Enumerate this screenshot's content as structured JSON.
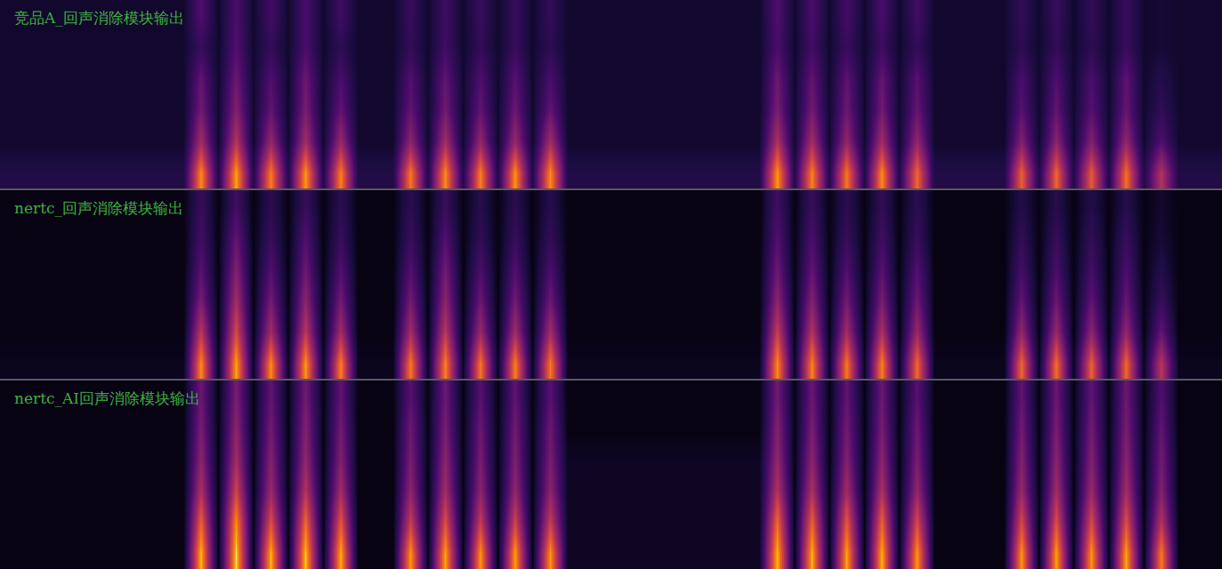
{
  "chart_data": [
    {
      "type": "heatmap",
      "title": "竞品A_回声消除模块输出",
      "zlim": [
        0,
        100
      ],
      "tick_labels": false,
      "z": [
        [
          14,
          14,
          14,
          14,
          14,
          14,
          14,
          14,
          14,
          14,
          14,
          88,
          14,
          92,
          14,
          85,
          14,
          90,
          14,
          86,
          14,
          14,
          14,
          84,
          14,
          88,
          14,
          86,
          14,
          90,
          14,
          88,
          14,
          14,
          14,
          14,
          14,
          14,
          14,
          14,
          14,
          14,
          14,
          14,
          90,
          14,
          86,
          14,
          84,
          14,
          88,
          14,
          80,
          14,
          14,
          14,
          14,
          14,
          78,
          14,
          80,
          14,
          76,
          14,
          82,
          14,
          60,
          14,
          14,
          14
        ],
        [
          8,
          8,
          8,
          8,
          8,
          8,
          8,
          8,
          8,
          8,
          8,
          55,
          8,
          60,
          8,
          50,
          8,
          55,
          8,
          52,
          8,
          8,
          8,
          48,
          8,
          55,
          8,
          50,
          8,
          52,
          8,
          55,
          8,
          8,
          8,
          8,
          8,
          8,
          8,
          8,
          8,
          8,
          8,
          8,
          58,
          8,
          55,
          8,
          50,
          8,
          55,
          8,
          50,
          8,
          8,
          8,
          8,
          8,
          45,
          8,
          48,
          8,
          45,
          8,
          50,
          8,
          30,
          8,
          8,
          8
        ],
        [
          8,
          8,
          8,
          8,
          8,
          8,
          8,
          8,
          8,
          8,
          8,
          40,
          8,
          45,
          8,
          35,
          8,
          42,
          8,
          35,
          8,
          8,
          8,
          35,
          8,
          40,
          8,
          35,
          8,
          38,
          8,
          35,
          8,
          8,
          8,
          8,
          8,
          8,
          8,
          8,
          8,
          8,
          8,
          8,
          42,
          8,
          40,
          8,
          38,
          8,
          40,
          8,
          36,
          8,
          8,
          8,
          8,
          8,
          32,
          8,
          35,
          8,
          32,
          8,
          36,
          8,
          20,
          8,
          8,
          8
        ],
        [
          8,
          8,
          8,
          8,
          8,
          8,
          8,
          8,
          8,
          8,
          8,
          35,
          8,
          38,
          8,
          30,
          8,
          38,
          8,
          28,
          8,
          8,
          8,
          30,
          8,
          35,
          8,
          30,
          8,
          32,
          8,
          28,
          8,
          8,
          8,
          8,
          8,
          8,
          8,
          8,
          8,
          8,
          8,
          8,
          38,
          8,
          35,
          8,
          34,
          8,
          36,
          8,
          32,
          8,
          8,
          8,
          8,
          8,
          28,
          8,
          30,
          8,
          28,
          8,
          34,
          8,
          15,
          8,
          8,
          8
        ],
        [
          8,
          8,
          8,
          8,
          8,
          8,
          8,
          8,
          8,
          8,
          8,
          22,
          8,
          30,
          8,
          20,
          8,
          28,
          8,
          18,
          8,
          8,
          8,
          20,
          8,
          25,
          8,
          20,
          8,
          22,
          8,
          18,
          8,
          8,
          8,
          8,
          8,
          8,
          8,
          8,
          8,
          8,
          8,
          8,
          28,
          8,
          25,
          8,
          22,
          8,
          24,
          8,
          20,
          8,
          8,
          8,
          8,
          8,
          18,
          8,
          20,
          8,
          18,
          8,
          22,
          8,
          10,
          8,
          8,
          8
        ],
        [
          8,
          8,
          8,
          8,
          8,
          8,
          8,
          8,
          8,
          8,
          8,
          30,
          8,
          28,
          8,
          25,
          8,
          28,
          8,
          25,
          8,
          8,
          8,
          22,
          8,
          24,
          8,
          22,
          8,
          22,
          8,
          20,
          8,
          8,
          8,
          8,
          8,
          8,
          8,
          8,
          8,
          8,
          8,
          8,
          30,
          8,
          28,
          8,
          26,
          8,
          28,
          8,
          25,
          8,
          8,
          8,
          8,
          8,
          20,
          8,
          22,
          8,
          20,
          8,
          22,
          8,
          10,
          8,
          8,
          8
        ]
      ]
    },
    {
      "type": "heatmap",
      "title": "nertc_回声消除模块输出",
      "zlim": [
        0,
        100
      ],
      "tick_labels": false,
      "z": [
        [
          5,
          5,
          5,
          5,
          5,
          5,
          5,
          5,
          5,
          5,
          5,
          88,
          5,
          92,
          5,
          88,
          5,
          90,
          5,
          86,
          5,
          5,
          5,
          84,
          5,
          86,
          5,
          84,
          5,
          86,
          5,
          84,
          5,
          5,
          5,
          5,
          5,
          5,
          5,
          5,
          5,
          5,
          5,
          5,
          88,
          5,
          86,
          5,
          84,
          5,
          86,
          5,
          80,
          5,
          5,
          5,
          5,
          5,
          80,
          5,
          82,
          5,
          78,
          5,
          80,
          5,
          62,
          5,
          5,
          5
        ],
        [
          3,
          3,
          3,
          3,
          3,
          3,
          3,
          3,
          3,
          3,
          3,
          62,
          3,
          70,
          3,
          55,
          3,
          62,
          3,
          55,
          3,
          3,
          3,
          55,
          3,
          62,
          3,
          52,
          3,
          55,
          3,
          55,
          3,
          3,
          3,
          3,
          3,
          3,
          3,
          3,
          3,
          3,
          3,
          3,
          65,
          3,
          60,
          3,
          55,
          3,
          58,
          3,
          52,
          3,
          3,
          3,
          3,
          3,
          50,
          3,
          52,
          3,
          48,
          3,
          50,
          3,
          35,
          3,
          3,
          3
        ],
        [
          3,
          3,
          3,
          3,
          3,
          3,
          3,
          3,
          3,
          3,
          3,
          42,
          3,
          55,
          3,
          40,
          3,
          48,
          3,
          40,
          3,
          3,
          3,
          40,
          3,
          48,
          3,
          38,
          3,
          40,
          3,
          38,
          3,
          3,
          3,
          3,
          3,
          3,
          3,
          3,
          3,
          3,
          3,
          3,
          48,
          3,
          45,
          3,
          40,
          3,
          42,
          3,
          38,
          3,
          3,
          3,
          3,
          3,
          35,
          3,
          38,
          3,
          34,
          3,
          36,
          3,
          22,
          3,
          3,
          3
        ],
        [
          3,
          3,
          3,
          3,
          3,
          3,
          3,
          3,
          3,
          3,
          3,
          32,
          3,
          45,
          3,
          30,
          3,
          38,
          3,
          30,
          3,
          3,
          3,
          30,
          3,
          40,
          3,
          28,
          3,
          30,
          3,
          28,
          3,
          3,
          3,
          3,
          3,
          3,
          3,
          3,
          3,
          3,
          3,
          3,
          38,
          3,
          35,
          3,
          30,
          3,
          32,
          3,
          30,
          3,
          3,
          3,
          3,
          3,
          26,
          3,
          28,
          3,
          26,
          3,
          28,
          3,
          15,
          3,
          3,
          3
        ],
        [
          3,
          3,
          3,
          3,
          3,
          3,
          3,
          3,
          3,
          3,
          3,
          25,
          3,
          35,
          3,
          22,
          3,
          30,
          3,
          22,
          3,
          3,
          3,
          22,
          3,
          30,
          3,
          20,
          3,
          22,
          3,
          20,
          3,
          3,
          3,
          3,
          3,
          3,
          3,
          3,
          3,
          3,
          3,
          3,
          30,
          3,
          28,
          3,
          22,
          3,
          25,
          3,
          22,
          3,
          3,
          3,
          3,
          3,
          20,
          3,
          22,
          3,
          20,
          3,
          22,
          3,
          10,
          3,
          3,
          3
        ],
        [
          3,
          3,
          3,
          3,
          3,
          3,
          3,
          3,
          3,
          3,
          3,
          22,
          3,
          25,
          3,
          18,
          3,
          22,
          3,
          18,
          3,
          3,
          3,
          18,
          3,
          22,
          3,
          16,
          3,
          18,
          3,
          16,
          3,
          3,
          3,
          3,
          3,
          3,
          3,
          3,
          3,
          3,
          3,
          3,
          25,
          3,
          22,
          3,
          18,
          3,
          20,
          3,
          18,
          3,
          3,
          3,
          3,
          3,
          15,
          3,
          16,
          3,
          15,
          3,
          16,
          3,
          8,
          3,
          3,
          3
        ]
      ]
    },
    {
      "type": "heatmap",
      "title": "nertc_AI回声消除模块输出",
      "zlim": [
        0,
        100
      ],
      "tick_labels": false,
      "z": [
        [
          3,
          3,
          3,
          3,
          3,
          3,
          3,
          3,
          3,
          3,
          3,
          95,
          3,
          98,
          3,
          94,
          3,
          96,
          3,
          94,
          3,
          3,
          3,
          90,
          3,
          92,
          3,
          90,
          3,
          92,
          3,
          90,
          6,
          6,
          6,
          6,
          6,
          6,
          6,
          6,
          6,
          6,
          6,
          6,
          95,
          3,
          94,
          3,
          92,
          3,
          94,
          3,
          90,
          3,
          3,
          3,
          3,
          3,
          90,
          3,
          92,
          3,
          90,
          3,
          92,
          3,
          85,
          3,
          3,
          3
        ],
        [
          3,
          3,
          3,
          3,
          3,
          3,
          3,
          3,
          3,
          3,
          3,
          78,
          3,
          88,
          3,
          72,
          3,
          80,
          3,
          75,
          3,
          3,
          3,
          65,
          3,
          72,
          3,
          65,
          3,
          68,
          3,
          65,
          6,
          6,
          6,
          6,
          6,
          6,
          6,
          6,
          6,
          6,
          6,
          6,
          80,
          3,
          78,
          3,
          75,
          3,
          78,
          3,
          70,
          3,
          3,
          3,
          3,
          3,
          70,
          3,
          72,
          3,
          70,
          3,
          72,
          3,
          60,
          3,
          3,
          3
        ],
        [
          3,
          3,
          3,
          3,
          3,
          3,
          3,
          3,
          3,
          3,
          3,
          58,
          3,
          68,
          3,
          52,
          3,
          60,
          3,
          55,
          3,
          3,
          3,
          48,
          3,
          55,
          3,
          48,
          3,
          50,
          3,
          48,
          6,
          6,
          6,
          6,
          6,
          6,
          6,
          6,
          6,
          6,
          6,
          6,
          60,
          3,
          58,
          3,
          55,
          3,
          58,
          3,
          50,
          3,
          3,
          3,
          3,
          3,
          52,
          3,
          55,
          3,
          52,
          3,
          55,
          3,
          45,
          3,
          3,
          3
        ],
        [
          3,
          3,
          3,
          3,
          3,
          3,
          3,
          3,
          3,
          3,
          3,
          48,
          3,
          55,
          3,
          45,
          3,
          50,
          3,
          45,
          3,
          3,
          3,
          42,
          3,
          48,
          3,
          42,
          3,
          44,
          3,
          42,
          6,
          6,
          6,
          6,
          6,
          6,
          6,
          6,
          6,
          6,
          6,
          6,
          50,
          3,
          48,
          3,
          45,
          3,
          48,
          3,
          42,
          3,
          3,
          3,
          3,
          3,
          45,
          3,
          48,
          3,
          45,
          3,
          48,
          3,
          40,
          3,
          3,
          3
        ],
        [
          3,
          3,
          3,
          3,
          3,
          3,
          3,
          3,
          3,
          3,
          3,
          42,
          3,
          48,
          3,
          40,
          3,
          45,
          3,
          40,
          3,
          3,
          3,
          38,
          3,
          42,
          3,
          38,
          3,
          40,
          3,
          38,
          3,
          3,
          3,
          3,
          3,
          3,
          3,
          3,
          3,
          3,
          3,
          3,
          45,
          3,
          42,
          3,
          40,
          3,
          42,
          3,
          38,
          3,
          3,
          3,
          3,
          3,
          40,
          3,
          42,
          3,
          40,
          3,
          42,
          3,
          35,
          3,
          3,
          3
        ],
        [
          3,
          3,
          3,
          3,
          3,
          3,
          3,
          3,
          3,
          3,
          3,
          38,
          3,
          42,
          3,
          35,
          3,
          40,
          3,
          35,
          3,
          3,
          3,
          32,
          3,
          38,
          3,
          32,
          3,
          35,
          3,
          32,
          3,
          3,
          3,
          3,
          3,
          3,
          3,
          3,
          3,
          3,
          3,
          3,
          40,
          3,
          38,
          3,
          35,
          3,
          38,
          3,
          32,
          3,
          3,
          3,
          3,
          3,
          35,
          3,
          38,
          3,
          35,
          3,
          38,
          3,
          30,
          3,
          3,
          3
        ]
      ]
    }
  ]
}
